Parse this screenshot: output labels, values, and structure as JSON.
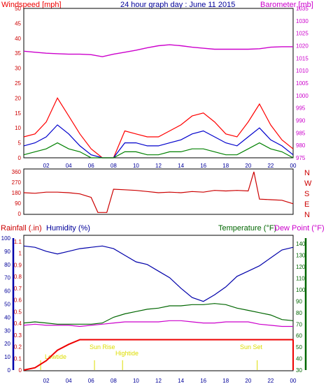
{
  "header": {
    "windspeed_label": "Windspeed [mph]",
    "title": "24 hour graph day : June 11 2015",
    "barometer_label": "Barometer [mb]"
  },
  "footer_labels": {
    "rainfall": "Rainfall (.in)",
    "humidity": "Humidity (%)",
    "temperature": "Temperature (°F)",
    "dew_point": "Dew Point (°F)"
  },
  "events": {
    "lowtide": "Lowtide",
    "sunrise": "Sun Rise",
    "hightide": "Hightide",
    "sunset": "Sun Set"
  },
  "colors": {
    "wind": "#ff0000",
    "wind_avg": "#0000cc",
    "wind_low": "#008000",
    "barometer": "#cc00cc",
    "direction": "#cc0000",
    "humidity": "#0000aa",
    "temperature": "#006600",
    "dewpoint": "#cc00cc",
    "rain": "#ee0000",
    "events": "#dddd00"
  },
  "chart_data": [
    {
      "type": "line",
      "title": "24 hour graph day : June 11 2015",
      "x_ticks": [
        "02",
        "04",
        "06",
        "08",
        "10",
        "12",
        "14",
        "16",
        "18",
        "20",
        "22",
        "00"
      ],
      "ylabel": "Windspeed [mph]",
      "ylim": [
        0,
        50
      ],
      "y_ticks": [
        "0",
        "5",
        "10",
        "15",
        "20",
        "25",
        "30",
        "35",
        "40",
        "45",
        "50"
      ],
      "y2label": "Barometer [mb]",
      "y2lim": [
        975,
        1035
      ],
      "y2_ticks": [
        "975",
        "980",
        "985",
        "990",
        "995",
        "1000",
        "1005",
        "1010",
        "1015",
        "1020",
        "1025",
        "1030",
        "1035"
      ],
      "x": [
        0,
        1,
        2,
        3,
        4,
        5,
        6,
        7,
        8,
        9,
        10,
        11,
        12,
        13,
        14,
        15,
        16,
        17,
        18,
        19,
        20,
        21,
        22,
        23,
        24
      ],
      "series": [
        {
          "values": [
            7,
            8,
            12,
            20,
            14,
            8,
            3,
            0,
            0,
            9,
            8,
            7,
            7,
            9,
            11,
            14,
            15,
            12,
            8,
            7,
            12,
            18,
            11,
            6,
            3
          ]
        },
        {
          "values": [
            4,
            5,
            7,
            11,
            8,
            4,
            1,
            0,
            0,
            5,
            5,
            4,
            4,
            5,
            6,
            8,
            9,
            7,
            5,
            4,
            7,
            10,
            6,
            4,
            1
          ]
        },
        {
          "values": [
            1,
            2,
            3,
            5,
            3,
            2,
            0,
            0,
            0,
            2,
            2,
            1,
            1,
            2,
            2,
            3,
            3,
            2,
            1,
            1,
            3,
            5,
            3,
            2,
            0
          ]
        },
        {
          "axis": "y2",
          "values": [
            1017.8,
            1017.4,
            1017.0,
            1016.8,
            1016.6,
            1016.6,
            1016.4,
            1015.6,
            1016.6,
            1017.4,
            1018.2,
            1019.2,
            1020.0,
            1020.4,
            1020.0,
            1019.4,
            1019.0,
            1018.6,
            1018.6,
            1018.6,
            1018.6,
            1018.8,
            1019.4,
            1019.6,
            1019.6
          ]
        }
      ]
    },
    {
      "type": "line",
      "y_ticks": [
        "360",
        "270",
        "180",
        "90",
        "0"
      ],
      "ylim": [
        0,
        360
      ],
      "y2_ticks": [
        "N",
        "W",
        "S",
        "E",
        "N"
      ],
      "x": [
        0,
        1,
        2,
        3,
        4,
        5,
        6,
        6.6,
        7.4,
        8,
        9,
        10,
        11,
        12,
        13,
        14,
        15,
        16,
        17,
        18,
        19,
        20,
        20.5,
        21,
        22,
        23,
        24
      ],
      "series": [
        {
          "values": [
            180,
            175,
            185,
            185,
            180,
            170,
            140,
            10,
            10,
            210,
            205,
            200,
            190,
            180,
            185,
            180,
            190,
            185,
            200,
            195,
            200,
            195,
            360,
            125,
            120,
            115,
            85
          ]
        }
      ]
    },
    {
      "type": "line",
      "y_ticks": [
        "0",
        "10",
        "20",
        "30",
        "40",
        "50",
        "60",
        "70",
        "80",
        "90",
        "100"
      ],
      "ylim": [
        0,
        100
      ],
      "y_ticks_left_inner": [
        "0",
        "0.1",
        "0.2",
        "0.3",
        "0.4",
        "0.5",
        "0.6",
        "0.7",
        "0.8",
        "0.9",
        "1",
        "1.1"
      ],
      "y2_ticks": [
        "30",
        "40",
        "50",
        "60",
        "70",
        "80",
        "90",
        "100",
        "110",
        "120",
        "130",
        "140"
      ],
      "y2lim": [
        30,
        145
      ],
      "x": [
        0,
        1,
        2,
        3,
        4,
        5,
        6,
        7,
        8,
        9,
        10,
        11,
        12,
        13,
        14,
        15,
        16,
        17,
        18,
        19,
        20,
        21,
        22,
        23,
        24
      ],
      "series": [
        {
          "values": [
            94,
            93,
            90,
            88,
            90,
            92,
            93,
            94,
            92,
            87,
            82,
            80,
            75,
            70,
            62,
            55,
            52,
            57,
            63,
            71,
            75,
            79,
            85,
            91,
            93
          ]
        },
        {
          "axis": "y2",
          "values": [
            71,
            72,
            71,
            70,
            70,
            70,
            70,
            71,
            76,
            79,
            81,
            83,
            84,
            86,
            86,
            87,
            87,
            88,
            87,
            84,
            82,
            80,
            78,
            74,
            73
          ]
        },
        {
          "axis": "y2",
          "values": [
            69,
            70,
            69,
            69,
            69,
            68,
            69,
            70,
            71,
            72,
            72,
            72,
            72,
            73,
            73,
            72,
            71,
            71,
            72,
            72,
            72,
            70,
            69,
            68,
            68
          ]
        },
        {
          "values": [
            0,
            0.02,
            0.08,
            0.17,
            0.22,
            0.26,
            0.26,
            0.26,
            0.26,
            0.26,
            0.26,
            0.26,
            0.26,
            0.26,
            0.26,
            0.26,
            0.26,
            0.26,
            0.26,
            0.26,
            0.26,
            0.26,
            0.26,
            0.26,
            0.26
          ]
        }
      ]
    }
  ]
}
